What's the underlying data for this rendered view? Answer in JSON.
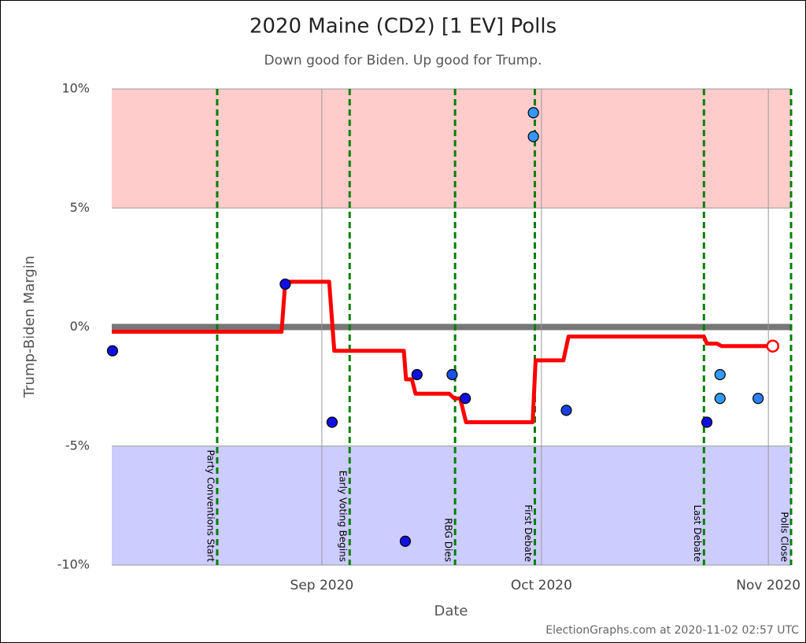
{
  "chart_data": {
    "type": "scatter",
    "title": "2020 Maine (CD2) [1 EV] Polls",
    "subtitle": "Down good for Biden. Up good for Trump.",
    "x_label": "Date",
    "y_label": "Trump-Biden Margin",
    "footer": "ElectionGraphs.com at 2020-11-02 02:57 UTC",
    "xlim": [
      216.3,
      309.1
    ],
    "xticks": [
      {
        "value": 245,
        "label": "Sep 2020"
      },
      {
        "value": 275,
        "label": "Oct 2020"
      },
      {
        "value": 306,
        "label": "Nov 2020"
      }
    ],
    "ylim": [
      -10,
      10
    ],
    "yticks": [
      {
        "value": 10,
        "label": "10%"
      },
      {
        "value": 5,
        "label": "5%"
      },
      {
        "value": 0,
        "label": "0%"
      },
      {
        "value": -5,
        "label": "-5%"
      },
      {
        "value": -10,
        "label": "-10%"
      }
    ],
    "grid": true,
    "bands": [
      {
        "from": 5,
        "to": 10,
        "color": "#ffcccc"
      },
      {
        "from": -10,
        "to": -5,
        "color": "#ccccff"
      }
    ],
    "events": [
      {
        "x": 230.7,
        "label": "Party Conventions Start"
      },
      {
        "x": 248.8,
        "label": "Early Voting Begins"
      },
      {
        "x": 263.2,
        "label": "RBG Dies"
      },
      {
        "x": 274.1,
        "label": "First Debate"
      },
      {
        "x": 297.2,
        "label": "Last Debate"
      },
      {
        "x": 309.1,
        "label": "Polls Close"
      }
    ],
    "event_color": "#008000",
    "points": {
      "x": [
        216.4,
        240.0,
        246.4,
        256.4,
        258.0,
        262.8,
        264.6,
        273.9,
        273.9,
        278.4,
        297.6,
        299.4,
        299.4,
        304.6
      ],
      "values": [
        -1,
        1.8,
        -4,
        -9,
        -2,
        -2,
        -3,
        9,
        8,
        -3.5,
        -4,
        -2,
        -3,
        -3
      ],
      "colors": [
        "#1010e0",
        "#1010e0",
        "#1010e0",
        "#1010e0",
        "#1010e0",
        "#1a4fe8",
        "#1010e0",
        "#3399ff",
        "#3399ff",
        "#1a3ee6",
        "#1010e0",
        "#3399ff",
        "#3399ff",
        "#2f80f5"
      ]
    },
    "average": {
      "color": "#ff0000",
      "x": [
        216.3,
        239.5,
        240.0,
        246.0,
        246.7,
        256.2,
        256.5,
        257.3,
        257.8,
        262.4,
        263.1,
        263.9,
        264.7,
        273.8,
        274.2,
        278.0,
        278.7,
        297.2,
        297.6,
        299.0,
        299.6,
        306.6
      ],
      "values": [
        -0.2,
        -0.2,
        1.9,
        1.9,
        -1.0,
        -1.0,
        -2.2,
        -2.2,
        -2.8,
        -2.8,
        -3.0,
        -3.0,
        -4.0,
        -4.0,
        -1.4,
        -1.4,
        -0.4,
        -0.4,
        -0.7,
        -0.7,
        -0.8,
        -0.8
      ]
    }
  }
}
